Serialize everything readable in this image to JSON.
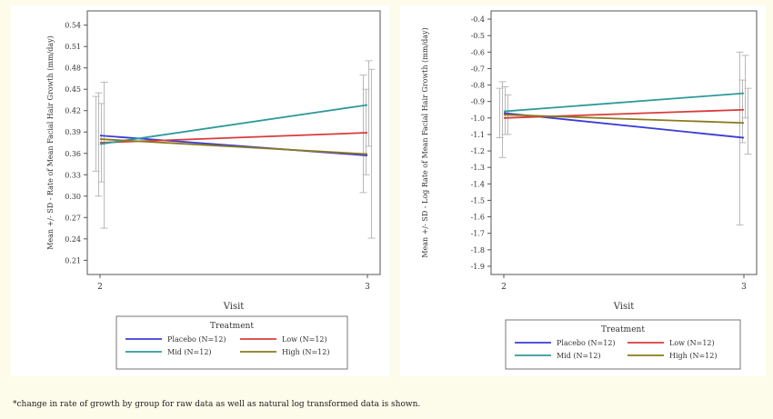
{
  "footnote": "*change in rate of growth by group for raw data as well as natural log transformed data is shown.",
  "series_colors": {
    "Placebo": "#3b3bd9",
    "Low": "#d93b3b",
    "Mid": "#2f9a9a",
    "High": "#8a7a1e"
  },
  "error_bar_color": "#b9b9b9",
  "chart_data": [
    {
      "type": "line",
      "xlabel": "Visit",
      "ylabel": "Mean +/- SD - Rate of Mean Facial Hair Growth (mm/day)",
      "categories": [
        "2",
        "3"
      ],
      "ylim": [
        0.19,
        0.56
      ],
      "yticks": [
        "0.54",
        "0.51",
        "0.48",
        "0.45",
        "0.42",
        "0.39",
        "0.36",
        "0.33",
        "0.30",
        "0.27",
        "0.24",
        "0.21"
      ],
      "legend": {
        "title": "Treatment",
        "position": "bottom",
        "entries": [
          "Placebo (N=12)",
          "Low (N=12)",
          "Mid (N=12)",
          "High (N=12)"
        ]
      },
      "series": [
        {
          "name": "Placebo",
          "values": [
            0.385,
            0.357
          ],
          "err_low": [
            0.335,
            0.305
          ],
          "err_high": [
            0.44,
            0.47
          ]
        },
        {
          "name": "Low",
          "values": [
            0.375,
            0.389
          ],
          "err_low": [
            0.3,
            0.33
          ],
          "err_high": [
            0.445,
            0.45
          ]
        },
        {
          "name": "Mid",
          "values": [
            0.373,
            0.428
          ],
          "err_low": [
            0.32,
            0.37
          ],
          "err_high": [
            0.43,
            0.49
          ]
        },
        {
          "name": "High",
          "values": [
            0.38,
            0.359
          ],
          "err_low": [
            0.255,
            0.241
          ],
          "err_high": [
            0.46,
            0.478
          ]
        }
      ]
    },
    {
      "type": "line",
      "xlabel": "Visit",
      "ylabel": "Mean +/- SD - Log Rate of Mean Facial Hair Growth (mm/day)",
      "categories": [
        "2",
        "3"
      ],
      "ylim": [
        -1.95,
        -0.35
      ],
      "yticks": [
        "-0.4",
        "-0.5",
        "-0.6",
        "-0.7",
        "-0.8",
        "-0.9",
        "-1.0",
        "-1.1",
        "-1.2",
        "-1.3",
        "-1.4",
        "-1.5",
        "-1.6",
        "-1.7",
        "-1.8",
        "-1.9"
      ],
      "legend": {
        "title": "Treatment",
        "position": "bottom",
        "entries": [
          "Placebo (N=12)",
          "Low (N=12)",
          "Mid (N=12)",
          "High (N=12)"
        ]
      },
      "series": [
        {
          "name": "Placebo",
          "values": [
            -0.97,
            -1.12
          ],
          "err_low": [
            -1.12,
            -1.65
          ],
          "err_high": [
            -0.82,
            -0.6
          ]
        },
        {
          "name": "Low",
          "values": [
            -1.0,
            -0.95
          ],
          "err_low": [
            -1.24,
            -1.15
          ],
          "err_high": [
            -0.78,
            -0.77
          ]
        },
        {
          "name": "Mid",
          "values": [
            -0.96,
            -0.85
          ],
          "err_low": [
            -1.1,
            -1.0
          ],
          "err_high": [
            -0.81,
            -0.62
          ]
        },
        {
          "name": "High",
          "values": [
            -0.98,
            -1.03
          ],
          "err_low": [
            -1.1,
            -1.22
          ],
          "err_high": [
            -0.86,
            -0.82
          ]
        }
      ]
    }
  ]
}
